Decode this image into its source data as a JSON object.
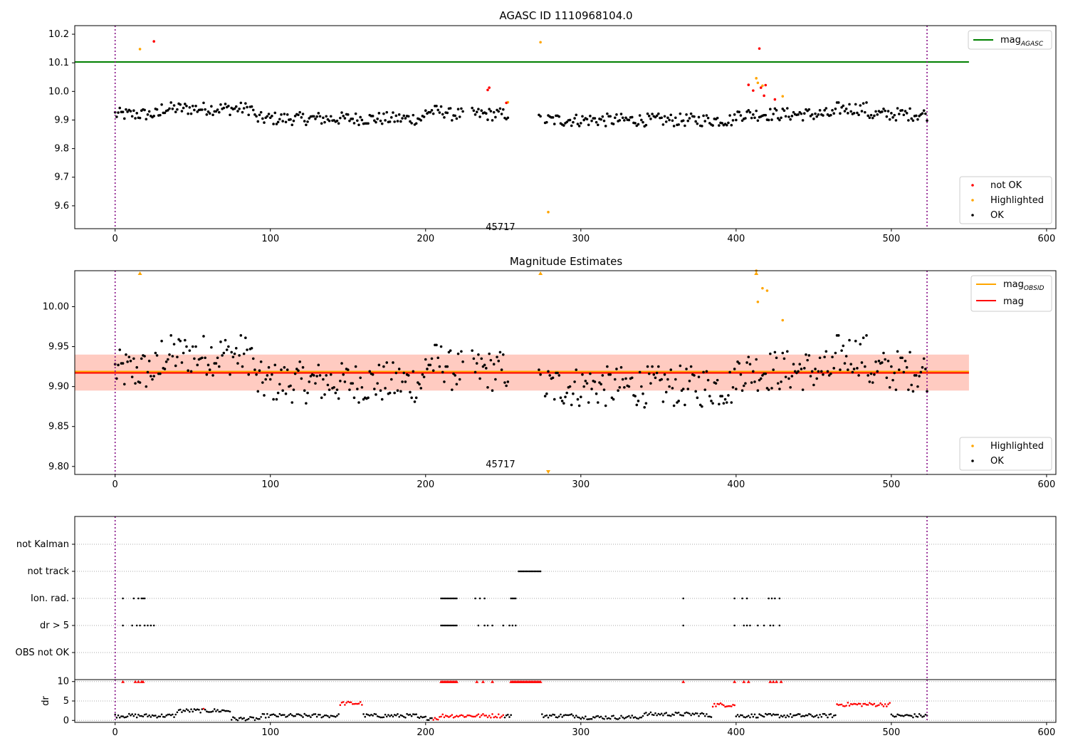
{
  "chart_data": [
    {
      "type": "scatter",
      "title": "AGASC ID 1110968104.0",
      "xlim": [
        -26,
        606
      ],
      "ylim": [
        9.52,
        10.23
      ],
      "xticks": [
        0,
        100,
        200,
        300,
        400,
        500,
        600
      ],
      "yticks": [
        9.6,
        9.7,
        9.8,
        9.9,
        10.0,
        10.1,
        10.2
      ],
      "vlines": [
        0,
        523
      ],
      "hline": {
        "name": "mag_AGASC",
        "y": 10.103,
        "x_range": [
          -26,
          550
        ]
      },
      "annotation": {
        "text": "45717",
        "x": 262,
        "y": 9.545
      },
      "legend_lines": [
        {
          "label": "mag",
          "subscript": "AGASC",
          "color": "#008000"
        }
      ],
      "legend_points": [
        {
          "label": "not OK",
          "color": "#ff0000"
        },
        {
          "label": "Highlighted",
          "color": "#ffa500"
        },
        {
          "label": "OK",
          "color": "#000000"
        }
      ],
      "series": [
        {
          "name": "not OK",
          "x": [
            25,
            240,
            241,
            252,
            408,
            411,
            415,
            416,
            418,
            419,
            425
          ],
          "y": [
            10.175,
            10.005,
            10.013,
            9.96,
            10.023,
            10.003,
            10.15,
            10.013,
            9.985,
            10.022,
            9.972
          ]
        },
        {
          "name": "Highlighted",
          "x": [
            16,
            253,
            274,
            279,
            413,
            414,
            417,
            430
          ],
          "y": [
            10.148,
            9.962,
            10.172,
            9.578,
            10.046,
            10.03,
            10.02,
            9.983
          ]
        },
        {
          "name": "OK",
          "x": [],
          "y": []
        }
      ]
    },
    {
      "type": "scatter",
      "title": "Magnitude Estimates",
      "xlim": [
        -26,
        606
      ],
      "ylim": [
        9.79,
        10.045
      ],
      "xticks": [
        0,
        100,
        200,
        300,
        400,
        500,
        600
      ],
      "yticks": [
        9.8,
        9.85,
        9.9,
        9.95,
        10.0
      ],
      "vlines": [
        0,
        523
      ],
      "lines": [
        {
          "name": "mag_OBSID",
          "y": 9.918,
          "color": "#ffa500"
        },
        {
          "name": "mag",
          "y": 9.918,
          "color": "#ff0000"
        }
      ],
      "bands": [
        {
          "y": [
            9.895,
            9.94
          ],
          "color": "#ffb6c1",
          "alpha": 0.4
        },
        {
          "y": [
            9.895,
            9.94
          ],
          "color": "#ffa07a",
          "alpha": 0.35
        }
      ],
      "annotation": {
        "text": "45717",
        "x": 262,
        "y": 9.8
      },
      "legend_lines": [
        {
          "label": "mag",
          "subscript": "OBSID",
          "color": "#ffa500"
        },
        {
          "label": "mag",
          "subscript": "",
          "color": "#ff0000"
        }
      ],
      "legend_points": [
        {
          "label": "Highlighted",
          "color": "#ffa500"
        },
        {
          "label": "OK",
          "color": "#000000"
        }
      ],
      "series": [
        {
          "name": "Highlighted",
          "x": [
            413,
            414,
            417,
            420,
            430
          ],
          "y": [
            10.045,
            10.006,
            10.023,
            10.02,
            9.983
          ],
          "markers": "circle"
        },
        {
          "name": "Highlighted (out of range)",
          "x": [
            16,
            274,
            413
          ],
          "y": [
            10.045,
            10.045,
            10.045
          ],
          "markers": "triangle-up"
        },
        {
          "name": "Highlighted (below range)",
          "x": [
            279
          ],
          "y": [
            9.79
          ],
          "markers": "triangle-down"
        },
        {
          "name": "OK",
          "x": [],
          "y": []
        }
      ]
    },
    {
      "type": "scatter",
      "title": "",
      "xlim": [
        -26,
        606
      ],
      "categories": [
        "not Kalman",
        "not track",
        "Ion. rad.",
        "dr > 5",
        "OBS not OK"
      ],
      "vlines": [
        0,
        523
      ],
      "flag_rows": [
        {
          "label": "not track",
          "x": [
            260,
            261,
            262,
            263,
            264,
            265,
            266,
            267,
            268,
            269,
            270,
            271,
            272,
            273,
            274
          ]
        },
        {
          "label": "Ion. rad.",
          "x": [
            5,
            12,
            15,
            17,
            18,
            19,
            210,
            211,
            212,
            213,
            214,
            215,
            216,
            217,
            218,
            219,
            220,
            232,
            235,
            238,
            255,
            256,
            257,
            258,
            366,
            399,
            404,
            407,
            421,
            423,
            425,
            428
          ]
        },
        {
          "label": "dr > 5",
          "x": [
            5,
            11,
            14,
            16,
            19,
            21,
            23,
            25,
            210,
            211,
            212,
            213,
            214,
            215,
            216,
            217,
            218,
            219,
            220,
            234,
            238,
            240,
            243,
            250,
            254,
            256,
            258,
            366,
            399,
            405,
            407,
            409,
            414,
            418,
            422,
            424,
            428
          ]
        }
      ]
    },
    {
      "type": "scatter",
      "title": "",
      "xlim": [
        -26,
        606
      ],
      "ylim": [
        -0.5,
        10.5
      ],
      "ylabel": "dr",
      "xticks": [
        0,
        100,
        200,
        300,
        400,
        500,
        600
      ],
      "yticks": [
        0,
        5,
        10
      ],
      "series": [
        {
          "name": "dr",
          "x": [],
          "y": []
        }
      ],
      "high_dr_x": [
        5,
        13,
        15,
        17,
        18,
        210,
        211,
        212,
        213,
        214,
        215,
        216,
        217,
        218,
        219,
        220,
        233,
        237,
        243,
        255,
        256,
        257,
        258,
        259,
        260,
        261,
        262,
        263,
        264,
        265,
        266,
        267,
        268,
        269,
        270,
        271,
        272,
        273,
        274,
        366,
        399,
        405,
        408,
        422,
        424,
        426,
        429
      ]
    }
  ]
}
